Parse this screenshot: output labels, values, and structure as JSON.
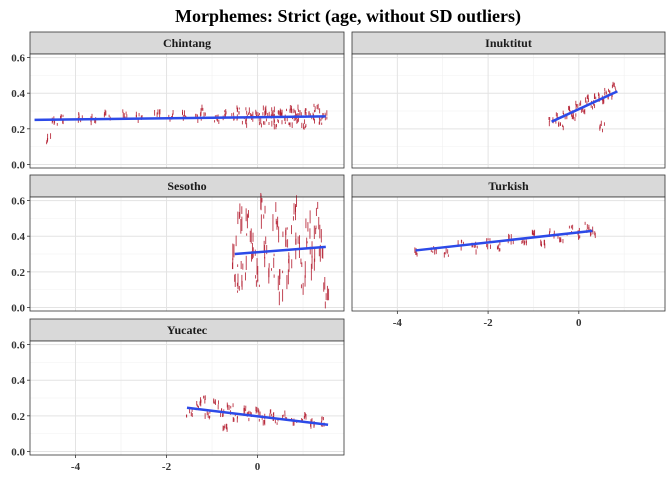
{
  "chart_data": {
    "type": "scatter",
    "title": "Morphemes: Strict (age, without SD outliers)",
    "xlabel": "",
    "ylabel": "",
    "xlim": [
      -5,
      1.9
    ],
    "ylim": [
      -0.02,
      0.62
    ],
    "x_ticks": [
      -4,
      -2,
      0
    ],
    "y_ticks": [
      0.0,
      0.2,
      0.4,
      0.6
    ],
    "x_tick_labels": [
      "-4",
      "-2",
      "0"
    ],
    "y_tick_labels": [
      "0.0",
      "0.2",
      "0.4",
      "0.6"
    ],
    "grid": true,
    "point_color": "#b2182b",
    "fit_color": "#2c4ae8",
    "panels": [
      {
        "name": "Chintang",
        "points": [
          [
            -4.6,
            0.14
          ],
          [
            -4.45,
            0.24
          ],
          [
            -4.3,
            0.26
          ],
          [
            -3.9,
            0.27
          ],
          [
            -3.6,
            0.25
          ],
          [
            -3.3,
            0.27
          ],
          [
            -2.9,
            0.28
          ],
          [
            -2.6,
            0.26
          ],
          [
            -2.2,
            0.29
          ],
          [
            -1.9,
            0.27
          ],
          [
            -1.6,
            0.28
          ],
          [
            -1.3,
            0.26
          ],
          [
            -1.2,
            0.3
          ],
          [
            -0.9,
            0.25
          ],
          [
            -0.7,
            0.28
          ],
          [
            -0.5,
            0.27
          ],
          [
            -0.4,
            0.31
          ],
          [
            -0.3,
            0.24
          ],
          [
            -0.2,
            0.29
          ],
          [
            -0.1,
            0.26
          ],
          [
            0.0,
            0.28
          ],
          [
            0.1,
            0.24
          ],
          [
            0.15,
            0.3
          ],
          [
            0.2,
            0.27
          ],
          [
            0.3,
            0.25
          ],
          [
            0.35,
            0.29
          ],
          [
            0.4,
            0.23
          ],
          [
            0.5,
            0.3
          ],
          [
            0.55,
            0.27
          ],
          [
            0.6,
            0.25
          ],
          [
            0.7,
            0.31
          ],
          [
            0.75,
            0.24
          ],
          [
            0.8,
            0.28
          ],
          [
            0.9,
            0.26
          ],
          [
            0.95,
            0.3
          ],
          [
            1.0,
            0.22
          ],
          [
            1.1,
            0.29
          ],
          [
            1.2,
            0.26
          ],
          [
            1.3,
            0.32
          ],
          [
            1.4,
            0.25
          ],
          [
            1.5,
            0.28
          ]
        ],
        "fit": {
          "x": [
            -4.9,
            1.5
          ],
          "y": [
            0.25,
            0.27
          ]
        }
      },
      {
        "name": "Inuktitut",
        "points": [
          [
            -0.6,
            0.24
          ],
          [
            -0.5,
            0.26
          ],
          [
            -0.4,
            0.22
          ],
          [
            -0.3,
            0.28
          ],
          [
            -0.2,
            0.3
          ],
          [
            -0.1,
            0.27
          ],
          [
            0.0,
            0.33
          ],
          [
            0.1,
            0.31
          ],
          [
            0.2,
            0.36
          ],
          [
            0.3,
            0.34
          ],
          [
            0.4,
            0.38
          ],
          [
            0.5,
            0.37
          ],
          [
            0.6,
            0.4
          ],
          [
            0.7,
            0.39
          ],
          [
            0.8,
            0.44
          ],
          [
            0.5,
            0.21
          ]
        ],
        "fit": {
          "x": [
            -0.6,
            0.85
          ],
          "y": [
            0.24,
            0.41
          ]
        }
      },
      {
        "name": "Sesotho",
        "points": [
          [
            -0.5,
            0.3
          ],
          [
            -0.45,
            0.1
          ],
          [
            -0.4,
            0.5
          ],
          [
            -0.3,
            0.2
          ],
          [
            -0.2,
            0.45
          ],
          [
            -0.1,
            0.35
          ],
          [
            0.0,
            0.15
          ],
          [
            0.1,
            0.55
          ],
          [
            0.2,
            0.3
          ],
          [
            0.3,
            0.25
          ],
          [
            0.4,
            0.48
          ],
          [
            0.5,
            0.12
          ],
          [
            0.6,
            0.38
          ],
          [
            0.7,
            0.22
          ],
          [
            0.8,
            0.52
          ],
          [
            0.9,
            0.33
          ],
          [
            1.0,
            0.18
          ],
          [
            1.1,
            0.44
          ],
          [
            1.2,
            0.28
          ],
          [
            1.3,
            0.5
          ],
          [
            1.4,
            0.36
          ],
          [
            1.5,
            0.08
          ]
        ],
        "fit": {
          "x": [
            -0.5,
            1.5
          ],
          "y": [
            0.3,
            0.34
          ]
        }
      },
      {
        "name": "Turkish",
        "points": [
          [
            -3.6,
            0.3
          ],
          [
            -3.2,
            0.32
          ],
          [
            -2.9,
            0.31
          ],
          [
            -2.6,
            0.35
          ],
          [
            -2.3,
            0.33
          ],
          [
            -2.0,
            0.36
          ],
          [
            -1.8,
            0.34
          ],
          [
            -1.5,
            0.38
          ],
          [
            -1.2,
            0.37
          ],
          [
            -1.0,
            0.4
          ],
          [
            -0.8,
            0.36
          ],
          [
            -0.6,
            0.41
          ],
          [
            -0.4,
            0.39
          ],
          [
            -0.2,
            0.43
          ],
          [
            0.0,
            0.41
          ],
          [
            0.2,
            0.45
          ],
          [
            0.3,
            0.42
          ]
        ],
        "fit": {
          "x": [
            -3.6,
            0.3
          ],
          "y": [
            0.32,
            0.43
          ]
        }
      },
      {
        "name": "Yucatec",
        "points": [
          [
            -1.5,
            0.22
          ],
          [
            -1.3,
            0.25
          ],
          [
            -1.1,
            0.2
          ],
          [
            -0.9,
            0.27
          ],
          [
            -0.8,
            0.22
          ],
          [
            -0.6,
            0.24
          ],
          [
            -0.5,
            0.19
          ],
          [
            -0.3,
            0.23
          ],
          [
            -0.2,
            0.2
          ],
          [
            0.0,
            0.22
          ],
          [
            0.1,
            0.18
          ],
          [
            0.3,
            0.21
          ],
          [
            0.4,
            0.17
          ],
          [
            0.6,
            0.2
          ],
          [
            0.8,
            0.16
          ],
          [
            1.0,
            0.19
          ],
          [
            1.2,
            0.15
          ],
          [
            1.4,
            0.17
          ],
          [
            -1.2,
            0.3
          ],
          [
            -0.7,
            0.14
          ]
        ],
        "fit": {
          "x": [
            -1.55,
            1.55
          ],
          "y": [
            0.245,
            0.15
          ]
        }
      }
    ]
  }
}
